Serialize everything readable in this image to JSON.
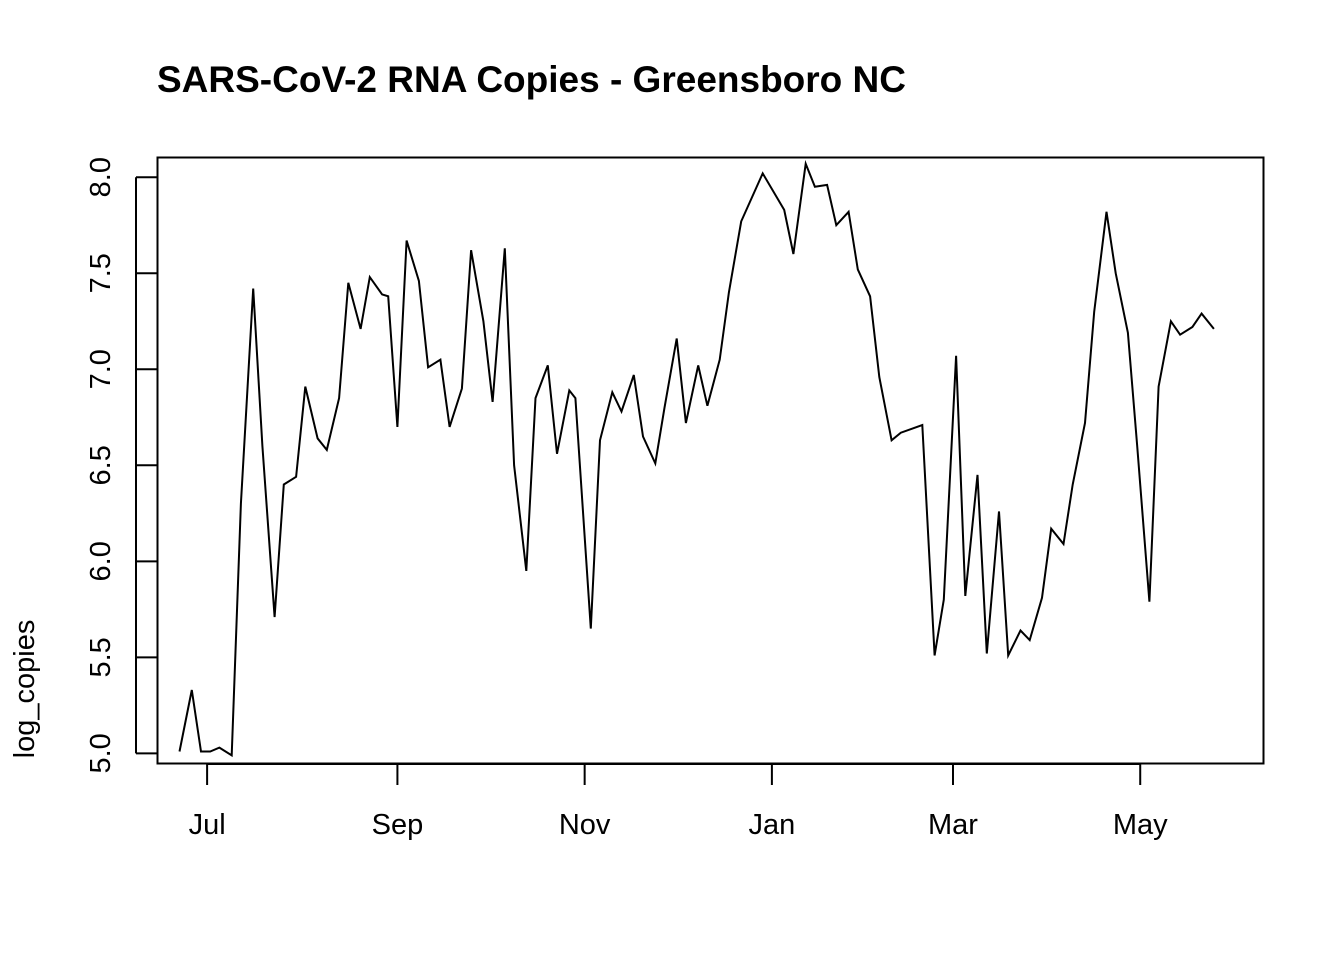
{
  "chart_data": {
    "type": "line",
    "title": "SARS-CoV-2 RNA Copies - Greensboro NC",
    "xlabel": "",
    "ylabel": "log_copies",
    "ylim": [
      4.95,
      8.1
    ],
    "xlim": [
      "2020-06-15",
      "2021-06-10"
    ],
    "grid": false,
    "legend": "none",
    "line_color": "#000000",
    "y_ticks": [
      {
        "value": 5.0,
        "label": "5.0"
      },
      {
        "value": 5.5,
        "label": "5.5"
      },
      {
        "value": 6.0,
        "label": "6.0"
      },
      {
        "value": 6.5,
        "label": "6.5"
      },
      {
        "value": 7.0,
        "label": "7.0"
      },
      {
        "value": 7.5,
        "label": "7.5"
      },
      {
        "value": 8.0,
        "label": "8.0"
      }
    ],
    "x_ticks": [
      {
        "date": "2020-07-01",
        "label": "Jul"
      },
      {
        "date": "2020-09-01",
        "label": "Sep"
      },
      {
        "date": "2020-11-01",
        "label": "Nov"
      },
      {
        "date": "2021-01-01",
        "label": "Jan"
      },
      {
        "date": "2021-03-01",
        "label": "Mar"
      },
      {
        "date": "2021-05-01",
        "label": "May"
      }
    ],
    "series": [
      {
        "values": [
          [
            "2020-06-22",
            5.01
          ],
          [
            "2020-06-26",
            5.33
          ],
          [
            "2020-06-29",
            5.01
          ],
          [
            "2020-07-02",
            5.01
          ],
          [
            "2020-07-05",
            5.03
          ],
          [
            "2020-07-09",
            4.99
          ],
          [
            "2020-07-12",
            6.3
          ],
          [
            "2020-07-16",
            7.42
          ],
          [
            "2020-07-19",
            6.6
          ],
          [
            "2020-07-23",
            5.71
          ],
          [
            "2020-07-26",
            6.4
          ],
          [
            "2020-07-30",
            6.44
          ],
          [
            "2020-08-02",
            6.91
          ],
          [
            "2020-08-06",
            6.64
          ],
          [
            "2020-08-09",
            6.58
          ],
          [
            "2020-08-13",
            6.85
          ],
          [
            "2020-08-16",
            7.45
          ],
          [
            "2020-08-20",
            7.21
          ],
          [
            "2020-08-23",
            7.48
          ],
          [
            "2020-08-27",
            7.39
          ],
          [
            "2020-08-29",
            7.38
          ],
          [
            "2020-09-01",
            6.7
          ],
          [
            "2020-09-04",
            7.67
          ],
          [
            "2020-09-08",
            7.46
          ],
          [
            "2020-09-11",
            7.01
          ],
          [
            "2020-09-15",
            7.05
          ],
          [
            "2020-09-18",
            6.7
          ],
          [
            "2020-09-22",
            6.9
          ],
          [
            "2020-09-25",
            7.62
          ],
          [
            "2020-09-29",
            7.25
          ],
          [
            "2020-10-02",
            6.83
          ],
          [
            "2020-10-06",
            7.63
          ],
          [
            "2020-10-09",
            6.5
          ],
          [
            "2020-10-13",
            5.95
          ],
          [
            "2020-10-16",
            6.85
          ],
          [
            "2020-10-20",
            7.02
          ],
          [
            "2020-10-23",
            6.56
          ],
          [
            "2020-10-27",
            6.89
          ],
          [
            "2020-10-29",
            6.85
          ],
          [
            "2020-11-03",
            5.65
          ],
          [
            "2020-11-06",
            6.63
          ],
          [
            "2020-11-10",
            6.88
          ],
          [
            "2020-11-13",
            6.78
          ],
          [
            "2020-11-17",
            6.97
          ],
          [
            "2020-11-20",
            6.65
          ],
          [
            "2020-11-24",
            6.51
          ],
          [
            "2020-11-27",
            6.8
          ],
          [
            "2020-12-01",
            7.16
          ],
          [
            "2020-12-04",
            6.72
          ],
          [
            "2020-12-08",
            7.02
          ],
          [
            "2020-12-11",
            6.81
          ],
          [
            "2020-12-15",
            7.05
          ],
          [
            "2020-12-18",
            7.4
          ],
          [
            "2020-12-22",
            7.77
          ],
          [
            "2020-12-29",
            8.02
          ],
          [
            "2021-01-05",
            7.83
          ],
          [
            "2021-01-08",
            7.6
          ],
          [
            "2021-01-12",
            8.07
          ],
          [
            "2021-01-15",
            7.95
          ],
          [
            "2021-01-19",
            7.96
          ],
          [
            "2021-01-22",
            7.75
          ],
          [
            "2021-01-26",
            7.82
          ],
          [
            "2021-01-29",
            7.52
          ],
          [
            "2021-02-02",
            7.38
          ],
          [
            "2021-02-05",
            6.96
          ],
          [
            "2021-02-09",
            6.63
          ],
          [
            "2021-02-12",
            6.67
          ],
          [
            "2021-02-19",
            6.71
          ],
          [
            "2021-02-23",
            5.51
          ],
          [
            "2021-02-26",
            5.8
          ],
          [
            "2021-03-02",
            7.07
          ],
          [
            "2021-03-05",
            5.82
          ],
          [
            "2021-03-09",
            6.45
          ],
          [
            "2021-03-12",
            5.52
          ],
          [
            "2021-03-16",
            6.26
          ],
          [
            "2021-03-19",
            5.51
          ],
          [
            "2021-03-23",
            5.64
          ],
          [
            "2021-03-26",
            5.59
          ],
          [
            "2021-03-30",
            5.81
          ],
          [
            "2021-04-02",
            6.17
          ],
          [
            "2021-04-06",
            6.09
          ],
          [
            "2021-04-09",
            6.4
          ],
          [
            "2021-04-13",
            6.72
          ],
          [
            "2021-04-16",
            7.3
          ],
          [
            "2021-04-20",
            7.82
          ],
          [
            "2021-04-23",
            7.5
          ],
          [
            "2021-04-27",
            7.19
          ],
          [
            "2021-04-30",
            6.6
          ],
          [
            "2021-05-04",
            5.79
          ],
          [
            "2021-05-07",
            6.91
          ],
          [
            "2021-05-11",
            7.25
          ],
          [
            "2021-05-14",
            7.18
          ],
          [
            "2021-05-18",
            7.22
          ],
          [
            "2021-05-21",
            7.29
          ],
          [
            "2021-05-25",
            7.21
          ]
        ]
      }
    ]
  }
}
